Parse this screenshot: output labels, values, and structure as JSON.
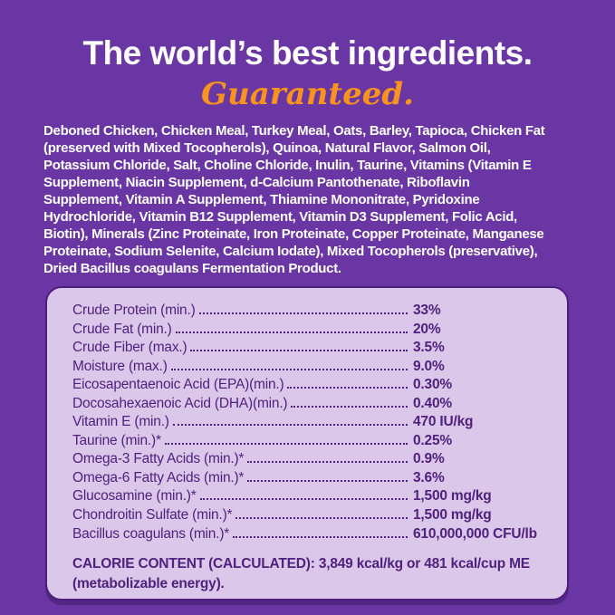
{
  "header": {
    "title": "The world’s best ingredients.",
    "subtitle": "Guaranteed.",
    "title_color": "#FFFFFF",
    "subtitle_color": "#F8941D"
  },
  "colors": {
    "background_purple": "#6936A3",
    "panel_background": "#DAC7E9",
    "panel_border": "#4E1E7E",
    "panel_text": "#50217D",
    "accent_orange": "#F8941D",
    "body_text": "#FFFFFF"
  },
  "ingredients": {
    "lines": [
      "Deboned Chicken, Chicken Meal, Turkey Meal, Oats, Barley, Tapioca, Chicken Fat",
      "(preserved with Mixed Tocopherols), Quinoa, Natural Flavor, Salmon Oil,",
      "Potassium Chloride, Salt, Choline Chloride, Inulin, Taurine, Vitamins (Vitamin E",
      "Supplement, Niacin Supplement, d-Calcium Pantothenate, Riboflavin",
      "Supplement, Vitamin A Supplement, Thiamine Mononitrate, Pyridoxine",
      "Hydrochloride, Vitamin B12 Supplement, Vitamin D3 Supplement, Folic Acid,",
      "Biotin), Minerals (Zinc Proteinate, Iron Proteinate, Copper Proteinate, Manganese",
      "Proteinate, Sodium Selenite, Calcium Iodate), Mixed Tocopherols (preservative),",
      "Dried Bacillus coagulans Fermentation Product."
    ]
  },
  "analysis": {
    "rows": [
      {
        "label": "Crude Protein (min.)",
        "value": "33%"
      },
      {
        "label": "Crude Fat (min.)",
        "value": "20%"
      },
      {
        "label": "Crude Fiber (max.)",
        "value": "3.5%"
      },
      {
        "label": "Moisture (max.)",
        "value": "9.0%"
      },
      {
        "label": "Eicosapentaenoic Acid (EPA)(min.)",
        "value": "0.30%"
      },
      {
        "label": "Docosahexaenoic Acid (DHA)(min.)",
        "value": "0.40%"
      },
      {
        "label": "Vitamin E (min.)",
        "value": "470 IU/kg"
      },
      {
        "label": "Taurine (min.)*",
        "value": "0.25%"
      },
      {
        "label": "Omega-3 Fatty Acids (min.)*",
        "value": "0.9%"
      },
      {
        "label": "Omega-6 Fatty Acids (min.)*",
        "value": "3.6%"
      },
      {
        "label": "Glucosamine (min.)*",
        "value": "1,500 mg/kg"
      },
      {
        "label": "Chondroitin Sulfate (min.)*",
        "value": "1,500 mg/kg"
      },
      {
        "label": "Bacillus coagulans (min.)*",
        "value": "610,000,000 CFU/lb"
      }
    ]
  },
  "calorie": {
    "text": "CALORIE CONTENT (CALCULATED): 3,849 kcal/kg or 481 kcal/cup ME (metabolizable energy)."
  }
}
